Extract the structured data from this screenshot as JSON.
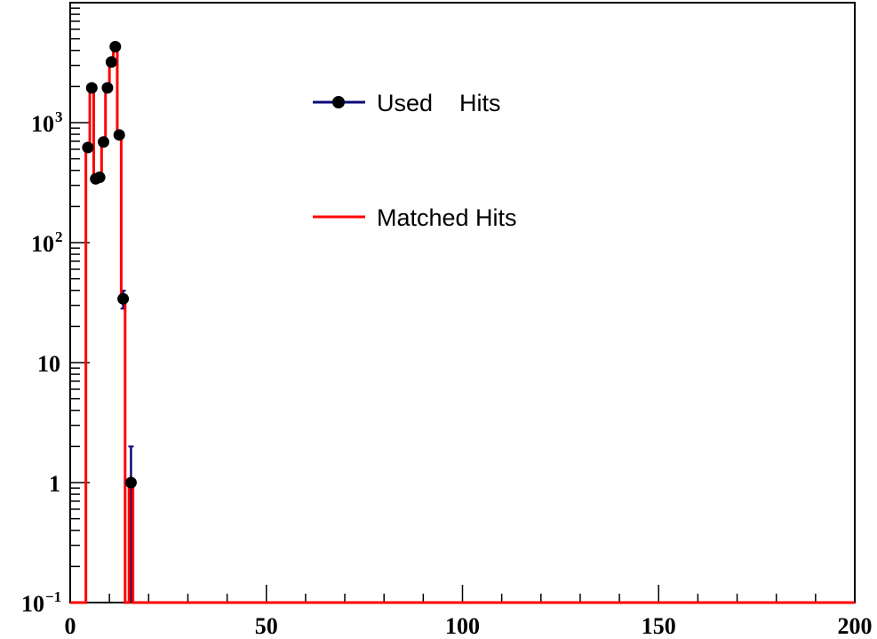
{
  "chart_data": {
    "type": "step",
    "title": "",
    "xlabel": "",
    "ylabel": "",
    "xlim": [
      0,
      200
    ],
    "ylim": [
      0.1,
      10000
    ],
    "yscale": "log",
    "grid": false,
    "legend_position": "top-center",
    "x_ticks": [
      {
        "value": 0,
        "label": "0"
      },
      {
        "value": 50,
        "label": "50"
      },
      {
        "value": 100,
        "label": "100"
      },
      {
        "value": 150,
        "label": "150"
      },
      {
        "value": 200,
        "label": "200"
      }
    ],
    "y_ticks": [
      {
        "value": 0.1,
        "base": "10",
        "exp": "−1"
      },
      {
        "value": 1,
        "base": "1",
        "exp": ""
      },
      {
        "value": 10,
        "base": "10",
        "exp": ""
      },
      {
        "value": 100,
        "base": "10",
        "exp": "2"
      },
      {
        "value": 1000,
        "base": "10",
        "exp": "3"
      }
    ],
    "bin_edges": [
      4,
      5,
      6,
      7,
      8,
      9,
      10,
      11,
      12,
      13,
      14,
      15,
      16
    ],
    "series": [
      {
        "name": "Used    Hits",
        "style": "markers-errorbars",
        "color": "#0b0b7a",
        "marker_color": "#000000",
        "values": [
          620,
          1950,
          340,
          350,
          690,
          1950,
          3200,
          4300,
          790,
          34,
          0,
          1
        ]
      },
      {
        "name": "Matched Hits",
        "style": "histogram-line",
        "color": "#ff0000",
        "values": [
          620,
          1950,
          340,
          350,
          690,
          1950,
          3200,
          4300,
          790,
          34,
          0,
          1
        ]
      }
    ]
  }
}
